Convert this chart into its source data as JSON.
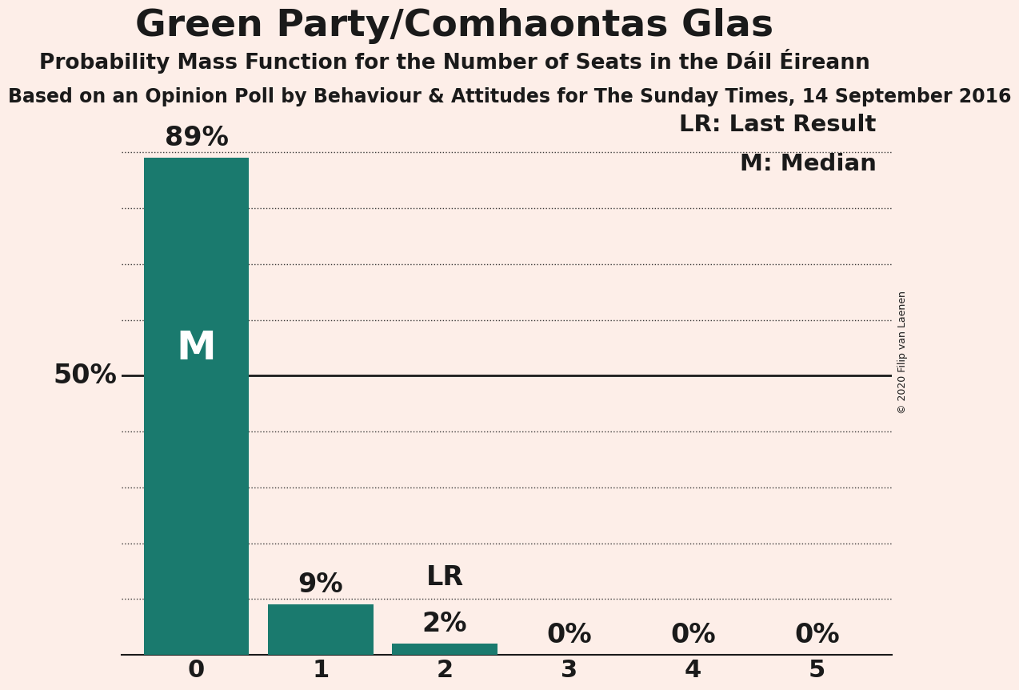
{
  "title": "Green Party/Comhaontas Glas",
  "subtitle": "Probability Mass Function for the Number of Seats in the Dáil Éireann",
  "source_line": "Based on an Opinion Poll by Behaviour & Attitudes for The Sunday Times, 14 September 2016",
  "copyright": "© 2020 Filip van Laenen",
  "categories": [
    0,
    1,
    2,
    3,
    4,
    5
  ],
  "values": [
    0.89,
    0.09,
    0.02,
    0.0,
    0.0,
    0.0
  ],
  "bar_color": "#1a7a6e",
  "background_color": "#fdeee8",
  "text_color": "#1a1a1a",
  "median_bar": 0,
  "last_result_bar": 2,
  "fifty_pct_line": 0.5,
  "legend_lr": "LR: Last Result",
  "legend_m": "M: Median",
  "y50_label": "50%",
  "title_fontsize": 34,
  "subtitle_fontsize": 19,
  "source_fontsize": 17,
  "bar_label_fontsize": 24,
  "annotation_fontsize": 24,
  "axis_tick_fontsize": 22,
  "legend_fontsize": 21,
  "y_label_fontsize": 24,
  "m_fontsize": 36,
  "copyright_fontsize": 9
}
